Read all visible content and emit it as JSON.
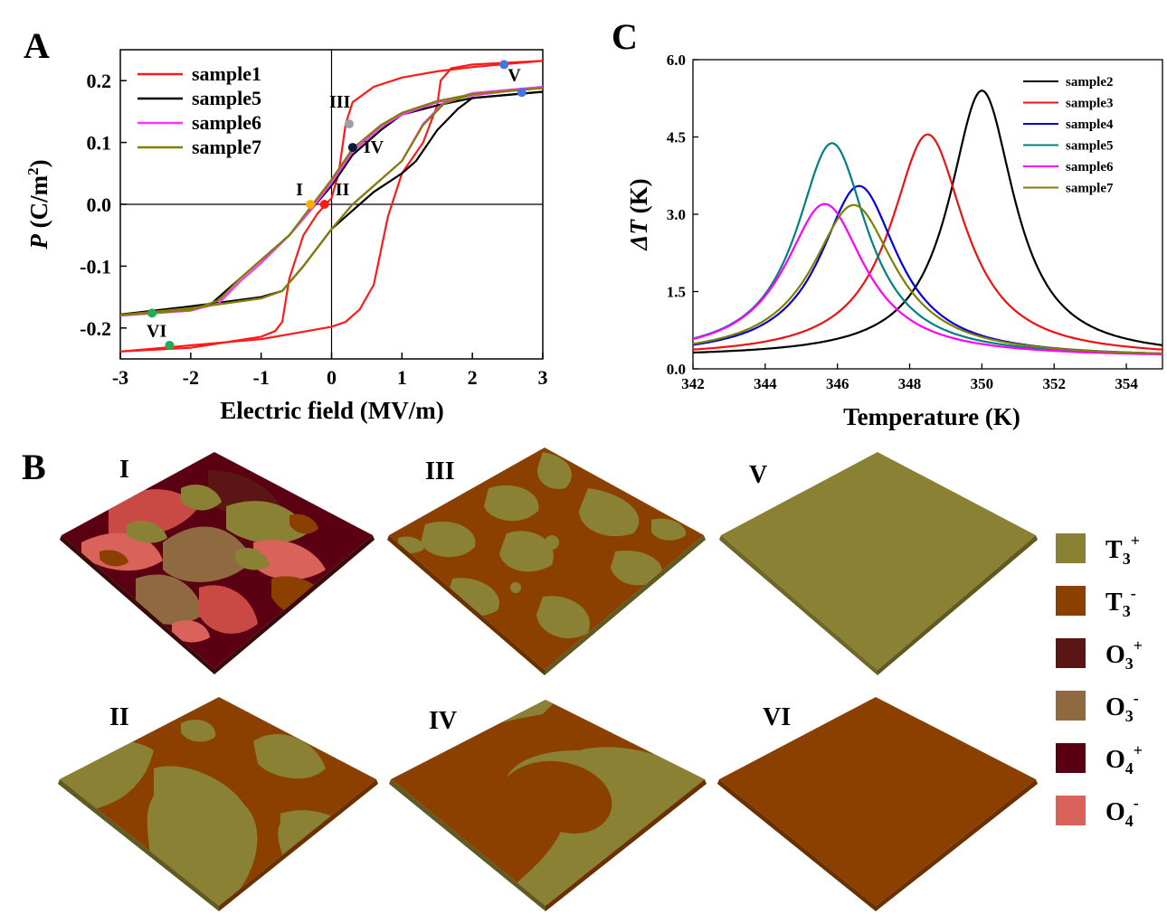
{
  "panel_letters": {
    "a": "A",
    "b": "B",
    "c": "C"
  },
  "chart_data": [
    {
      "id": "A",
      "type": "line",
      "xlabel": "Electric field (MV/m)",
      "ylabel_italic": "P",
      "ylabel_rest": " (C/m",
      "ylabel_sup": "2",
      "ylabel_close": ")",
      "xlim": [
        -3,
        3
      ],
      "ylim": [
        -0.25,
        0.25
      ],
      "xticks": [
        -3,
        -2,
        -1,
        0,
        1,
        2,
        3
      ],
      "yticks": [
        -0.2,
        -0.1,
        0.0,
        0.1,
        0.2
      ],
      "xtick_labels": [
        "-3",
        "-2",
        "-1",
        "0",
        "1",
        "2",
        "3"
      ],
      "ytick_labels": [
        "-0.2",
        "-0.1",
        "0.0",
        "0.1",
        "0.2"
      ],
      "legend_position": "top-left",
      "series": [
        {
          "name": "sample1",
          "color": "#ff1a1a",
          "branch_up": [
            [
              -3,
              -0.238
            ],
            [
              -2,
              -0.232
            ],
            [
              -1,
              -0.214
            ],
            [
              -0.8,
              -0.205
            ],
            [
              -0.7,
              -0.19
            ],
            [
              -0.6,
              -0.12
            ],
            [
              -0.4,
              -0.05
            ],
            [
              -0.2,
              -0.015
            ],
            [
              0,
              0.01
            ],
            [
              0.1,
              0.05
            ],
            [
              0.2,
              0.13
            ],
            [
              0.3,
              0.165
            ],
            [
              0.6,
              0.19
            ],
            [
              1,
              0.205
            ],
            [
              1.5,
              0.215
            ],
            [
              2,
              0.222
            ],
            [
              3,
              0.232
            ]
          ],
          "branch_down": [
            [
              3,
              0.232
            ],
            [
              2,
              0.226
            ],
            [
              1.7,
              0.22
            ],
            [
              1.55,
              0.2
            ],
            [
              1.5,
              0.16
            ],
            [
              1.3,
              0.1
            ],
            [
              1,
              0.05
            ],
            [
              0.8,
              -0.02
            ],
            [
              0.6,
              -0.13
            ],
            [
              0.4,
              -0.17
            ],
            [
              0.2,
              -0.19
            ],
            [
              0,
              -0.198
            ],
            [
              -0.5,
              -0.208
            ],
            [
              -1,
              -0.218
            ],
            [
              -2,
              -0.228
            ],
            [
              -3,
              -0.238
            ]
          ]
        },
        {
          "name": "sample5",
          "color": "#000000",
          "branch_up": [
            [
              -3,
              -0.178
            ],
            [
              -2,
              -0.17
            ],
            [
              -1.7,
              -0.16
            ],
            [
              -1.4,
              -0.13
            ],
            [
              -1,
              -0.09
            ],
            [
              -0.6,
              -0.05
            ],
            [
              -0.3,
              -0.01
            ],
            [
              0,
              0.03
            ],
            [
              0.3,
              0.08
            ],
            [
              0.7,
              0.12
            ],
            [
              1,
              0.145
            ],
            [
              1.5,
              0.16
            ],
            [
              2,
              0.172
            ],
            [
              3,
              0.182
            ]
          ],
          "branch_down": [
            [
              3,
              0.182
            ],
            [
              2,
              0.172
            ],
            [
              1.8,
              0.155
            ],
            [
              1.5,
              0.12
            ],
            [
              1.2,
              0.07
            ],
            [
              1,
              0.05
            ],
            [
              0.6,
              0.02
            ],
            [
              0.3,
              -0.01
            ],
            [
              0,
              -0.04
            ],
            [
              -0.4,
              -0.1
            ],
            [
              -0.7,
              -0.14
            ],
            [
              -1,
              -0.15
            ],
            [
              -2,
              -0.165
            ],
            [
              -3,
              -0.178
            ]
          ]
        },
        {
          "name": "sample6",
          "color": "#ff33ff",
          "branch_up": [
            [
              -3,
              -0.18
            ],
            [
              -2,
              -0.172
            ],
            [
              -1.6,
              -0.16
            ],
            [
              -1.3,
              -0.125
            ],
            [
              -1,
              -0.095
            ],
            [
              -0.6,
              -0.05
            ],
            [
              -0.3,
              -0.01
            ],
            [
              0,
              0.035
            ],
            [
              0.3,
              0.085
            ],
            [
              0.7,
              0.125
            ],
            [
              1,
              0.145
            ],
            [
              1.5,
              0.165
            ],
            [
              2,
              0.176
            ],
            [
              3,
              0.19
            ]
          ],
          "branch_down": [
            [
              3,
              0.19
            ],
            [
              2,
              0.18
            ],
            [
              1.6,
              0.165
            ],
            [
              1.3,
              0.13
            ],
            [
              1,
              0.07
            ],
            [
              0.6,
              0.03
            ],
            [
              0.3,
              0
            ],
            [
              0,
              -0.04
            ],
            [
              -0.4,
              -0.1
            ],
            [
              -0.7,
              -0.14
            ],
            [
              -1,
              -0.152
            ],
            [
              -2,
              -0.168
            ],
            [
              -3,
              -0.18
            ]
          ]
        },
        {
          "name": "sample7",
          "color": "#808000",
          "branch_up": [
            [
              -3,
              -0.179
            ],
            [
              -2,
              -0.171
            ],
            [
              -1.6,
              -0.155
            ],
            [
              -1.3,
              -0.12
            ],
            [
              -1,
              -0.09
            ],
            [
              -0.6,
              -0.05
            ],
            [
              -0.3,
              -0.005
            ],
            [
              0,
              0.04
            ],
            [
              0.3,
              0.09
            ],
            [
              0.7,
              0.128
            ],
            [
              1,
              0.148
            ],
            [
              1.5,
              0.167
            ],
            [
              2,
              0.178
            ],
            [
              3,
              0.188
            ]
          ],
          "branch_down": [
            [
              3,
              0.188
            ],
            [
              2,
              0.178
            ],
            [
              1.6,
              0.163
            ],
            [
              1.3,
              0.128
            ],
            [
              1,
              0.07
            ],
            [
              0.6,
              0.03
            ],
            [
              0.3,
              0
            ],
            [
              0,
              -0.04
            ],
            [
              -0.4,
              -0.1
            ],
            [
              -0.7,
              -0.14
            ],
            [
              -1,
              -0.152
            ],
            [
              -2,
              -0.168
            ],
            [
              -3,
              -0.179
            ]
          ]
        }
      ],
      "points": [
        {
          "label": "I",
          "x": -0.3,
          "y": 0.0,
          "color": "#ffb000"
        },
        {
          "label": "II",
          "x": -0.1,
          "y": 0.0,
          "color": "#ff1a1a"
        },
        {
          "label": "III",
          "x": 0.25,
          "y": 0.13,
          "color": "#a0a0a0"
        },
        {
          "label": "IV",
          "x": 0.3,
          "y": 0.092,
          "color": "#0a1a40"
        },
        {
          "label": "V",
          "x": 2.45,
          "y": 0.226,
          "color": "#4477dd"
        },
        {
          "label": "",
          "x": 2.7,
          "y": 0.181,
          "color": "#4477dd"
        },
        {
          "label": "VI",
          "x": -2.55,
          "y": -0.176,
          "color": "#22aa55"
        },
        {
          "label": "",
          "x": -2.3,
          "y": -0.228,
          "color": "#22aa55"
        }
      ]
    },
    {
      "id": "C",
      "type": "line",
      "xlabel": "Temperature (K)",
      "ylabel_italic": "ΔT",
      "ylabel_rest": " (K)",
      "xlim": [
        342,
        355
      ],
      "ylim": [
        0,
        6
      ],
      "xticks": [
        342,
        344,
        346,
        348,
        350,
        352,
        354
      ],
      "yticks": [
        0.0,
        1.5,
        3.0,
        4.5,
        6.0
      ],
      "xtick_labels": [
        "342",
        "344",
        "346",
        "348",
        "350",
        "352",
        "354"
      ],
      "ytick_labels": [
        "0.0",
        "1.5",
        "3.0",
        "4.5",
        "6.0"
      ],
      "legend_position": "top-right",
      "series": [
        {
          "name": "sample2",
          "color": "#000000",
          "peak_x": 350.0,
          "peak_y": 5.4,
          "width": 1.1
        },
        {
          "name": "sample3",
          "color": "#ee1111",
          "peak_x": 348.5,
          "peak_y": 4.55,
          "width": 1.25
        },
        {
          "name": "sample4",
          "color": "#0000dd",
          "peak_x": 346.6,
          "peak_y": 3.55,
          "width": 1.3
        },
        {
          "name": "sample5",
          "color": "#008080",
          "peak_x": 345.85,
          "peak_y": 4.38,
          "width": 1.2
        },
        {
          "name": "sample6",
          "color": "#ff00ff",
          "peak_x": 345.65,
          "peak_y": 3.2,
          "width": 1.35
        },
        {
          "name": "sample7",
          "color": "#808000",
          "peak_x": 346.45,
          "peak_y": 3.18,
          "width": 1.4
        }
      ]
    }
  ],
  "panel_b": {
    "tiles": [
      {
        "label": "I",
        "pattern": "mixed"
      },
      {
        "label": "III",
        "pattern": "blobs"
      },
      {
        "label": "V",
        "pattern": "uniform-t3plus"
      },
      {
        "label": "II",
        "pattern": "large-domains"
      },
      {
        "label": "IV",
        "pattern": "two-domains"
      },
      {
        "label": "VI",
        "pattern": "uniform-t3minus"
      }
    ],
    "legend": [
      {
        "base": "T",
        "sub": "3",
        "sup": "+",
        "color": "#8a8135"
      },
      {
        "base": "T",
        "sub": "3",
        "sup": "-",
        "color": "#8b4000"
      },
      {
        "base": "O",
        "sub": "3",
        "sup": "+",
        "color": "#5c1515"
      },
      {
        "base": "O",
        "sub": "3",
        "sup": "-",
        "color": "#8f6a40"
      },
      {
        "base": "O",
        "sub": "4",
        "sup": "+",
        "color": "#5a0012"
      },
      {
        "base": "O",
        "sub": "4",
        "sup": "-",
        "color": "#d9635a"
      }
    ]
  }
}
